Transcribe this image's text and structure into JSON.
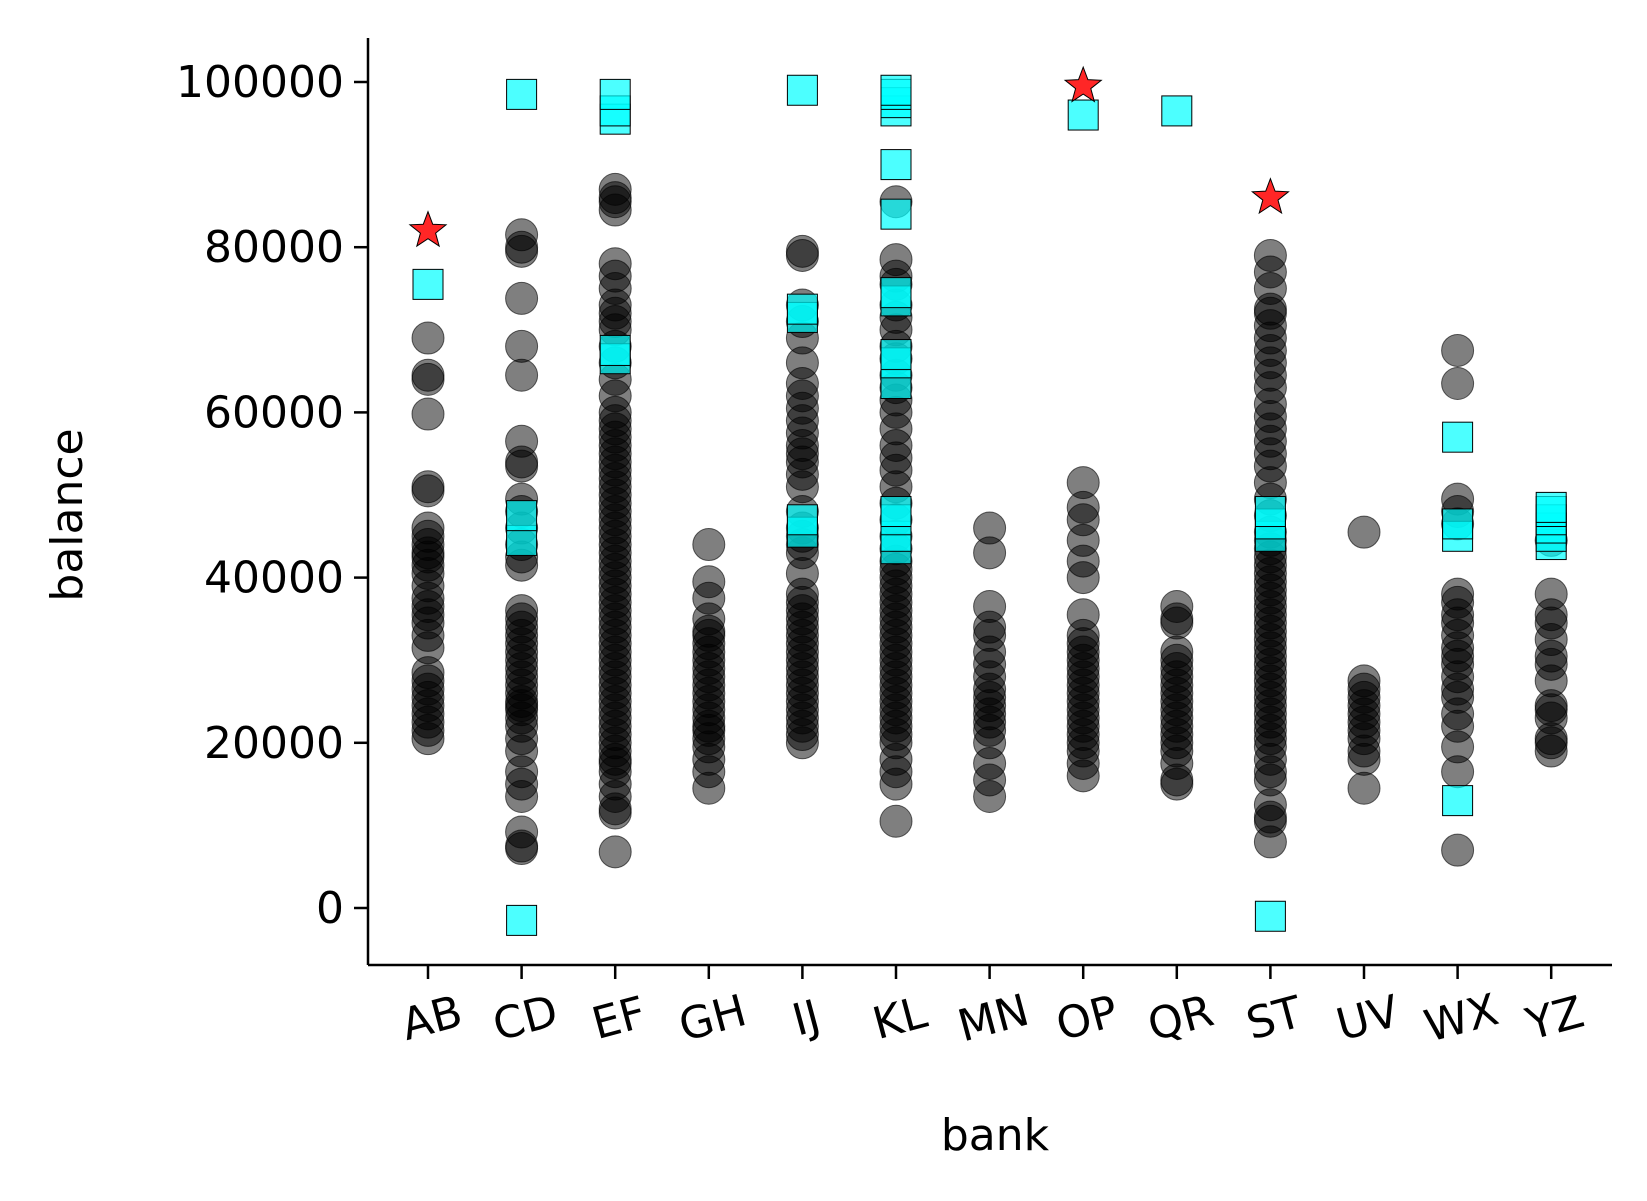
{
  "chart_data": {
    "type": "scatter",
    "title": "",
    "xlabel": "bank",
    "ylabel": "balance",
    "categories": [
      "AB",
      "CD",
      "EF",
      "GH",
      "IJ",
      "KL",
      "MN",
      "OP",
      "QR",
      "ST",
      "UV",
      "WX",
      "YZ"
    ],
    "ylim": [
      -7000,
      105000
    ],
    "yticks": [
      0,
      20000,
      40000,
      60000,
      80000,
      100000
    ],
    "ytick_labels": [
      "0",
      "20000",
      "40000",
      "60000",
      "80000",
      "100000"
    ],
    "xtick_rotation_deg": -15,
    "grid": false,
    "legend": "none",
    "colors": {
      "circles": "#000000",
      "squares": "#00ffff",
      "stars": "#ff0000",
      "marker_edge": "#000000"
    },
    "series": [
      {
        "marker": "circle",
        "opacity": 0.5,
        "points": {
          "AB": [
            20500,
            21500,
            22500,
            23500,
            24500,
            25500,
            26500,
            27500,
            28500,
            31500,
            33000,
            34500,
            35500,
            36500,
            37500,
            39000,
            40500,
            41500,
            42500,
            43000,
            44000,
            45000,
            46000,
            50500,
            51000,
            59800,
            64000,
            64500,
            69000
          ],
          "CD": [
            7200,
            7500,
            9200,
            13500,
            15000,
            16500,
            19000,
            20500,
            22000,
            23000,
            24000,
            24500,
            25000,
            26000,
            27000,
            28000,
            29000,
            30000,
            31000,
            32000,
            33000,
            34000,
            35000,
            36000,
            41500,
            42500,
            44000,
            46000,
            48000,
            49500,
            53500,
            54000,
            56500,
            64500,
            68000,
            73800,
            79500,
            80000,
            81500
          ],
          "EF": [
            6800,
            11500,
            12000,
            13500,
            15000,
            16500,
            17500,
            18000,
            19000,
            20000,
            21000,
            22000,
            23000,
            24000,
            25000,
            26000,
            27000,
            28000,
            29000,
            30000,
            31000,
            32000,
            33000,
            34000,
            35000,
            36000,
            37000,
            38000,
            39000,
            40000,
            41000,
            42000,
            43000,
            44000,
            45000,
            46000,
            47000,
            48000,
            49000,
            50000,
            51000,
            52000,
            53000,
            54000,
            55000,
            56000,
            57000,
            58000,
            59000,
            60000,
            62000,
            64000,
            66000,
            68000,
            70000,
            71000,
            72000,
            73000,
            75000,
            76500,
            78000,
            84500,
            85500,
            86000,
            87000
          ],
          "GH": [
            14500,
            16500,
            18000,
            19500,
            20500,
            21500,
            22000,
            23000,
            24000,
            25000,
            26000,
            27000,
            28000,
            29000,
            30000,
            31000,
            32000,
            33000,
            33500,
            35000,
            37500,
            39500,
            44000
          ],
          "IJ": [
            20000,
            21000,
            22000,
            23000,
            24000,
            25000,
            26000,
            27000,
            28000,
            29000,
            30000,
            31000,
            32000,
            33000,
            34000,
            35000,
            36000,
            37000,
            38000,
            40500,
            43000,
            44000,
            45000,
            46000,
            48000,
            51000,
            52500,
            54000,
            55000,
            56000,
            57500,
            59000,
            60500,
            62000,
            63500,
            66000,
            69000,
            71000,
            73000,
            79000,
            79500
          ],
          "KL": [
            10500,
            15000,
            16500,
            18000,
            20000,
            21000,
            22000,
            23000,
            24000,
            25000,
            26000,
            27000,
            28000,
            29000,
            30000,
            31000,
            32000,
            33000,
            34000,
            35000,
            36000,
            37000,
            38000,
            39000,
            40000,
            41000,
            42000,
            43500,
            45000,
            47000,
            49000,
            51000,
            53000,
            54500,
            56000,
            58000,
            60000,
            61500,
            63000,
            64500,
            66500,
            68000,
            70000,
            71500,
            73000,
            75500,
            76500,
            78500,
            85500
          ],
          "MN": [
            13500,
            15500,
            17500,
            20000,
            21500,
            22500,
            23500,
            24500,
            25500,
            26500,
            28000,
            29500,
            31000,
            33000,
            34000,
            36500,
            43000,
            46000
          ],
          "OP": [
            16000,
            17500,
            19000,
            20000,
            21000,
            22000,
            23000,
            24000,
            25000,
            26000,
            27000,
            28000,
            29000,
            30000,
            31000,
            32000,
            33000,
            35500,
            40000,
            42000,
            44500,
            47000,
            48500,
            51500
          ],
          "QR": [
            15000,
            15500,
            17500,
            19000,
            20000,
            21000,
            22000,
            23000,
            24000,
            25000,
            26000,
            27000,
            28000,
            29000,
            30000,
            31000,
            34500,
            35000,
            36500
          ],
          "ST": [
            8000,
            10500,
            11000,
            12500,
            15500,
            16500,
            18000,
            19500,
            20500,
            21500,
            22500,
            23500,
            24500,
            25500,
            26500,
            27500,
            28500,
            29500,
            30500,
            31500,
            32500,
            33500,
            34500,
            35500,
            36500,
            37500,
            38500,
            39500,
            40500,
            41500,
            42500,
            43500,
            44500,
            45500,
            47500,
            49500,
            51500,
            53500,
            55000,
            56500,
            58000,
            59500,
            61000,
            63000,
            64500,
            66000,
            67500,
            69000,
            70500,
            72000,
            72500,
            75000,
            77000,
            79000
          ],
          "UV": [
            14500,
            18000,
            19000,
            20500,
            21500,
            22500,
            23500,
            24500,
            25500,
            26500,
            27500,
            45500
          ],
          "WX": [
            7000,
            16500,
            19500,
            22000,
            23500,
            25500,
            26500,
            28000,
            29500,
            30500,
            31500,
            33000,
            34500,
            35500,
            37000,
            38000,
            46500,
            48000,
            49500,
            63500,
            67500
          ],
          "YZ": [
            19000,
            20000,
            20500,
            23000,
            24000,
            24500,
            27500,
            29500,
            30500,
            32500,
            34500,
            35500,
            38000,
            44500
          ]
        }
      },
      {
        "marker": "square",
        "opacity": 0.7,
        "points": {
          "AB": [
            75500
          ],
          "CD": [
            -1500,
            44500,
            47500,
            98500
          ],
          "EF": [
            66500,
            67500,
            95500,
            96500,
            98500
          ],
          "IJ": [
            45500,
            47000,
            71500,
            72500,
            99000
          ],
          "KL": [
            43500,
            45000,
            47000,
            48000,
            63500,
            66000,
            67000,
            73500,
            74500,
            84000,
            90000,
            96500,
            97500,
            98500,
            99000
          ],
          "OP": [
            96000
          ],
          "QR": [
            96500
          ],
          "ST": [
            -1000,
            45000,
            46500,
            48000
          ],
          "WX": [
            13000,
            45000,
            46500,
            57000
          ],
          "YZ": [
            44000,
            45000,
            46000,
            47000,
            48000,
            48500
          ]
        }
      },
      {
        "marker": "star",
        "opacity": 1.0,
        "points": {
          "AB": [
            82000
          ],
          "OP": [
            99500
          ],
          "ST": [
            86000
          ]
        }
      }
    ]
  }
}
